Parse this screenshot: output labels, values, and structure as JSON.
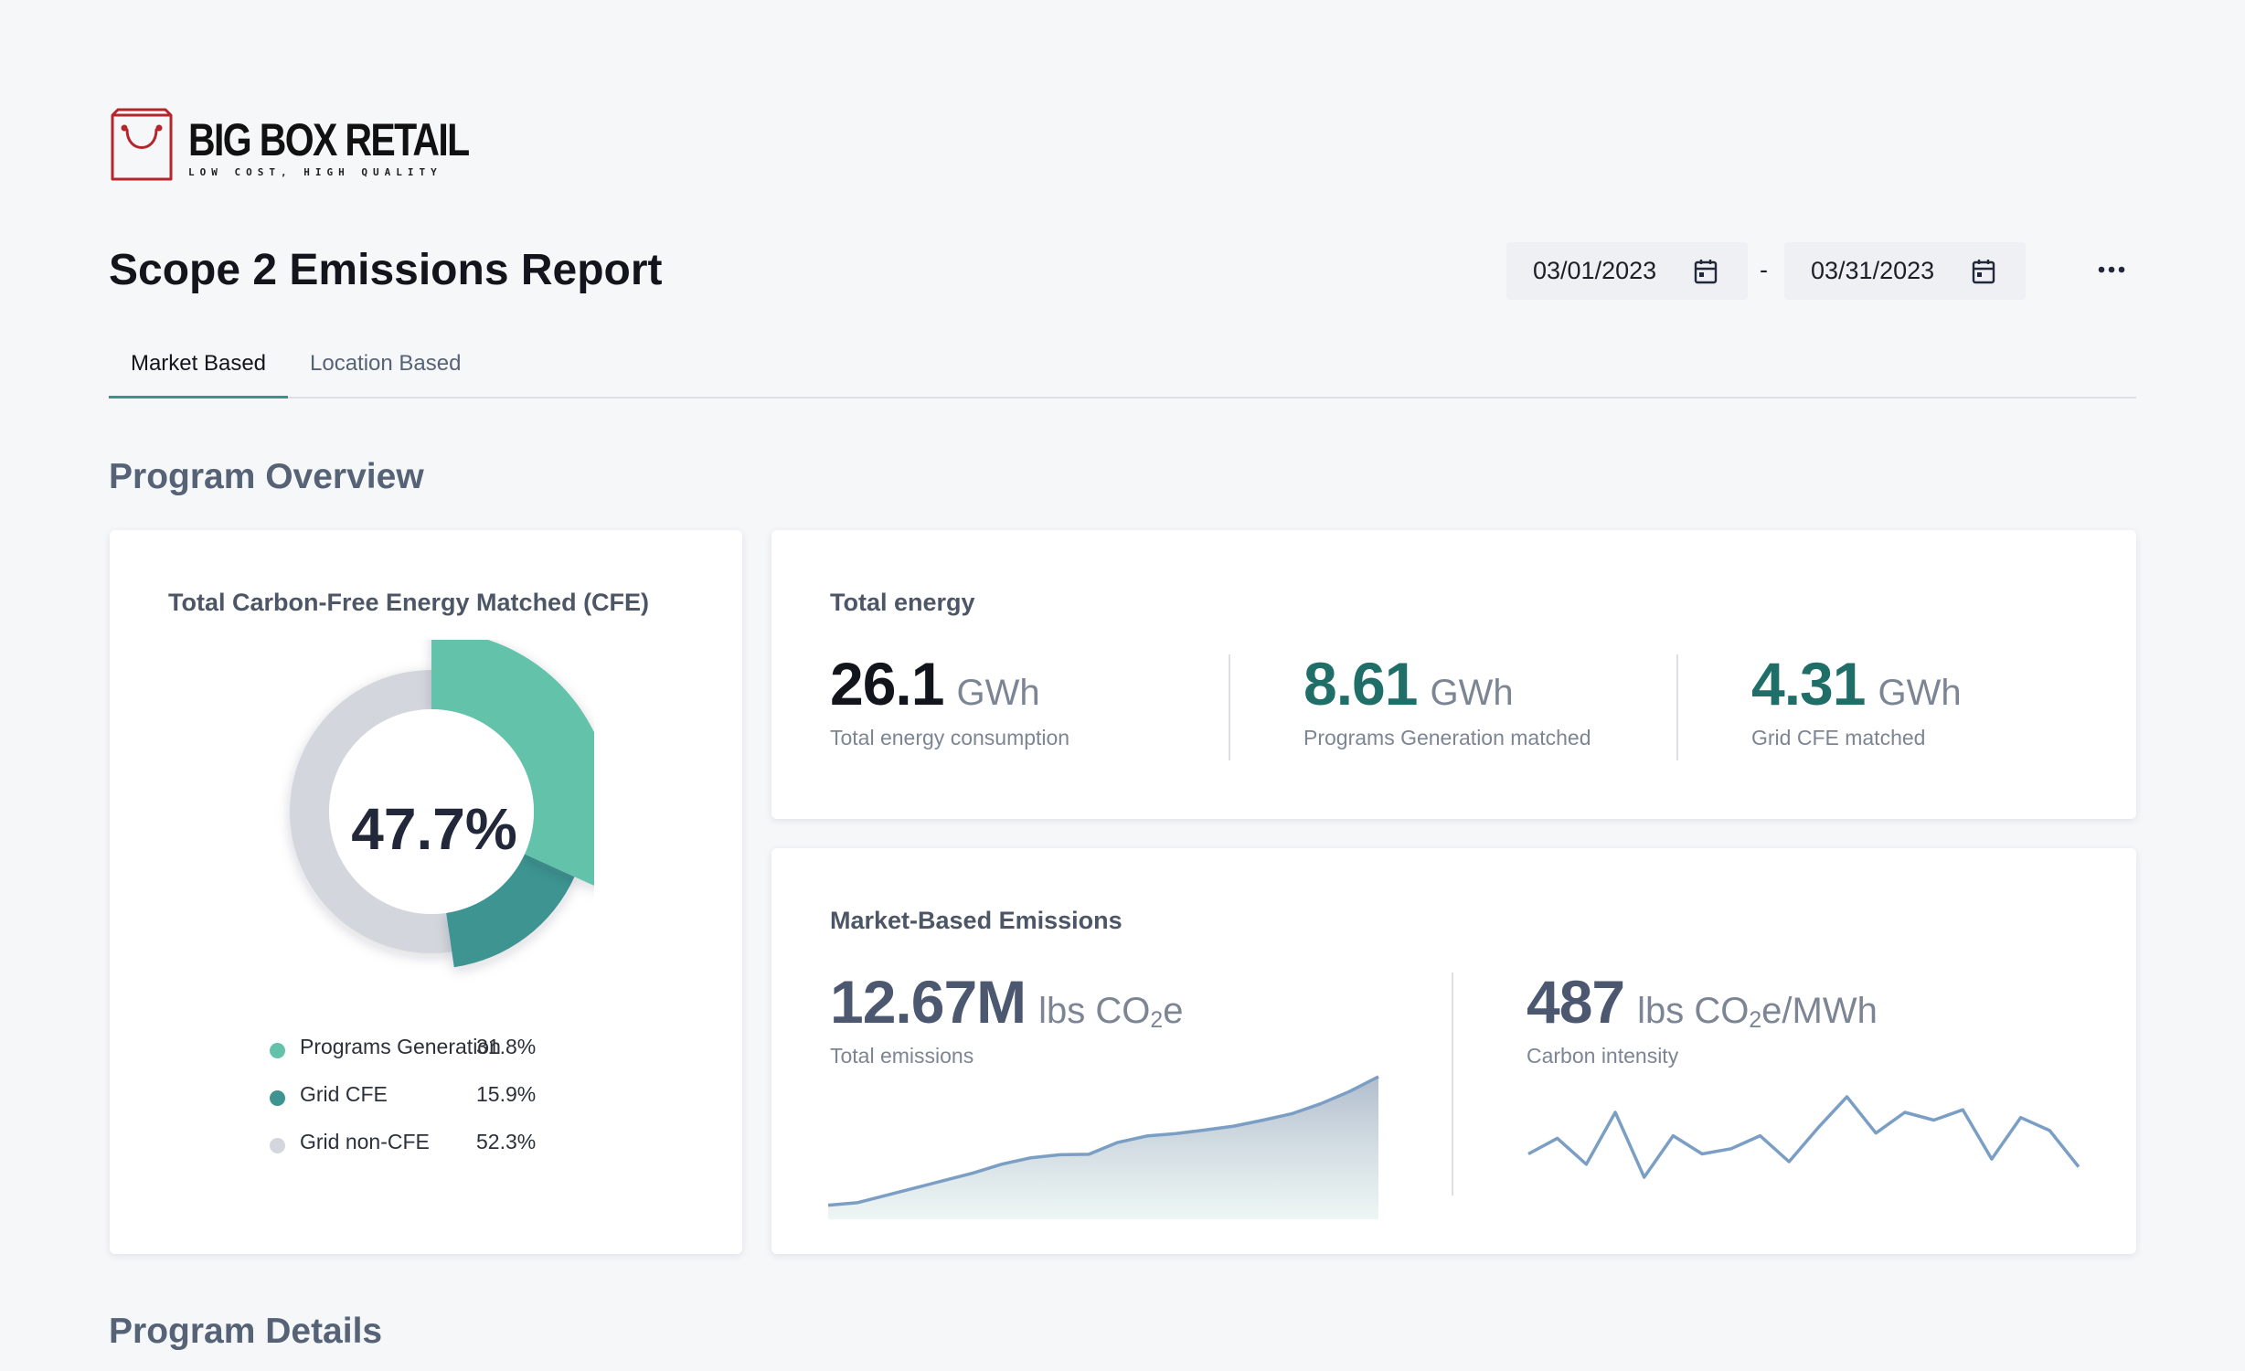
{
  "brand": {
    "name": "BIG BOX RETAIL",
    "tagline": "LOW COST, HIGH QUALITY",
    "accent": "#b5262c"
  },
  "header": {
    "title": "Scope 2 Emissions Report",
    "date_start": "03/01/2023",
    "date_separator": "-",
    "date_end": "03/31/2023",
    "calendar_icon": "calendar-icon",
    "more_icon": "more-horizontal-icon"
  },
  "tabs": [
    {
      "label": "Market Based",
      "active": true
    },
    {
      "label": "Location Based",
      "active": false
    }
  ],
  "sections": {
    "overview": "Program Overview",
    "details": "Program Details"
  },
  "cfe_card": {
    "title": "Total Carbon-Free Energy Matched (CFE)",
    "center_value": "47.7%",
    "legend": [
      {
        "label": "Programs Generation",
        "value": "31.8%",
        "color": "#64c2aa"
      },
      {
        "label": "Grid CFE",
        "value": "15.9%",
        "color": "#3e9490"
      },
      {
        "label": "Grid non-CFE",
        "value": "52.3%",
        "color": "#d3d6dc"
      }
    ]
  },
  "energy_card": {
    "title": "Total energy",
    "metrics": [
      {
        "value": "26.1",
        "unit": "GWh",
        "label": "Total energy consumption"
      },
      {
        "value": "8.61",
        "unit": "GWh",
        "label": "Programs Generation matched"
      },
      {
        "value": "4.31",
        "unit": "GWh",
        "label": "Grid CFE matched"
      }
    ]
  },
  "emissions_card": {
    "title": "Market-Based Emissions",
    "total": {
      "value": "12.67M",
      "unit_prefix": "lbs CO",
      "unit_sub": "2",
      "unit_suffix": "e",
      "label": "Total emissions"
    },
    "intensity": {
      "value": "487",
      "unit_prefix": "lbs CO",
      "unit_sub": "2",
      "unit_suffix": "e/MWh",
      "label": "Carbon intensity"
    }
  },
  "colors": {
    "teal_light": "#64c2aa",
    "teal_dark": "#3e9490",
    "grey": "#d3d6dc",
    "spark_line": "#7a9ec4"
  },
  "chart_data": [
    {
      "type": "pie",
      "labels": [
        "Programs Generation",
        "Grid CFE",
        "Grid non-CFE"
      ],
      "values": [
        31.8,
        15.9,
        52.3
      ]
    },
    {
      "type": "area",
      "values": [
        1,
        1.5,
        3,
        4.5,
        6,
        7.5,
        9.3,
        10.6,
        11.2,
        11.3,
        13.7,
        15,
        15.5,
        16.2,
        17,
        18.2,
        19.5,
        21.5,
        24,
        27
      ]
    },
    {
      "type": "line",
      "values": [
        12,
        18,
        8,
        28,
        3,
        19,
        12,
        14,
        19,
        9,
        22,
        34,
        20,
        28,
        25,
        29,
        10,
        26,
        21,
        7
      ]
    }
  ]
}
